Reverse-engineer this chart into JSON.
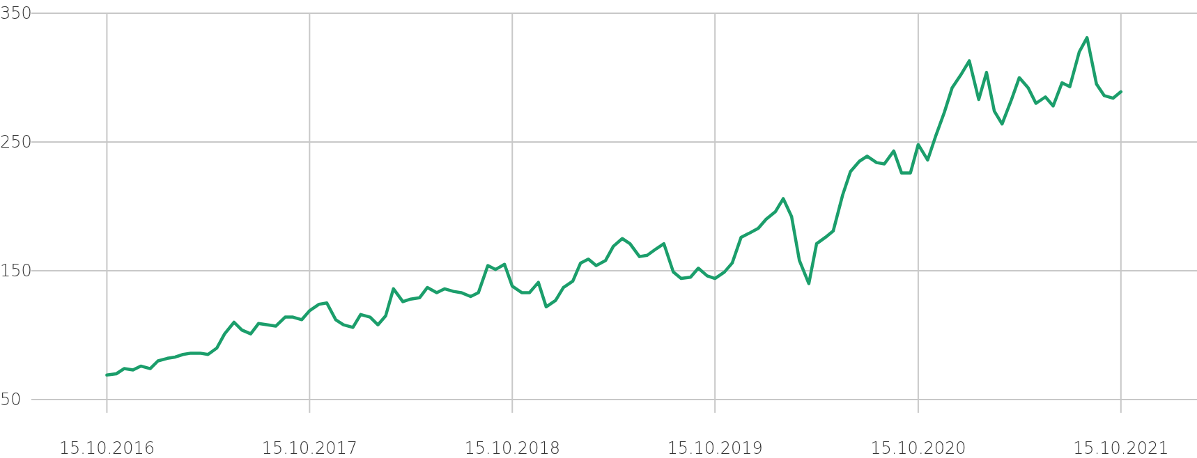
{
  "chart_data": {
    "type": "line",
    "xlim": [
      "2016-06-06",
      "2022-03-01"
    ],
    "ylim": [
      50,
      350
    ],
    "xticks": [
      {
        "value": "2016-10-15",
        "label": "15.10.2016"
      },
      {
        "value": "2017-10-15",
        "label": "15.10.2017"
      },
      {
        "value": "2018-10-15",
        "label": "15.10.2018"
      },
      {
        "value": "2019-10-15",
        "label": "15.10.2019"
      },
      {
        "value": "2020-10-15",
        "label": "15.10.2020"
      },
      {
        "value": "2021-10-15",
        "label": "15.10.2021"
      }
    ],
    "yticks": [
      50,
      150,
      250,
      350
    ],
    "grid": true,
    "marker": "none",
    "line_style": "solid",
    "x": [
      "2016-10-15",
      "2016-11-01",
      "2016-11-15",
      "2016-12-01",
      "2016-12-15",
      "2017-01-01",
      "2017-01-15",
      "2017-02-01",
      "2017-02-15",
      "2017-03-01",
      "2017-03-15",
      "2017-04-01",
      "2017-04-15",
      "2017-05-01",
      "2017-05-15",
      "2017-06-01",
      "2017-06-15",
      "2017-07-01",
      "2017-07-15",
      "2017-08-01",
      "2017-08-15",
      "2017-09-01",
      "2017-09-15",
      "2017-10-01",
      "2017-10-15",
      "2017-11-01",
      "2017-11-15",
      "2017-12-01",
      "2017-12-15",
      "2018-01-01",
      "2018-01-15",
      "2018-02-01",
      "2018-02-15",
      "2018-03-01",
      "2018-03-15",
      "2018-04-01",
      "2018-04-15",
      "2018-05-01",
      "2018-05-15",
      "2018-06-01",
      "2018-06-15",
      "2018-07-01",
      "2018-07-15",
      "2018-08-01",
      "2018-08-15",
      "2018-09-01",
      "2018-09-15",
      "2018-10-01",
      "2018-10-15",
      "2018-11-01",
      "2018-11-15",
      "2018-12-01",
      "2018-12-15",
      "2019-01-01",
      "2019-01-15",
      "2019-02-01",
      "2019-02-15",
      "2019-03-01",
      "2019-03-15",
      "2019-04-01",
      "2019-04-15",
      "2019-05-01",
      "2019-05-15",
      "2019-06-01",
      "2019-06-15",
      "2019-07-01",
      "2019-07-15",
      "2019-08-01",
      "2019-08-15",
      "2019-09-01",
      "2019-09-15",
      "2019-10-01",
      "2019-10-15",
      "2019-11-01",
      "2019-11-15",
      "2019-12-01",
      "2019-12-15",
      "2020-01-01",
      "2020-01-15",
      "2020-02-01",
      "2020-02-15",
      "2020-03-01",
      "2020-03-15",
      "2020-04-01",
      "2020-04-15",
      "2020-05-01",
      "2020-05-15",
      "2020-06-01",
      "2020-06-15",
      "2020-07-01",
      "2020-07-15",
      "2020-08-01",
      "2020-08-15",
      "2020-09-01",
      "2020-09-15",
      "2020-10-01",
      "2020-10-15",
      "2020-11-01",
      "2020-11-15",
      "2020-12-01",
      "2020-12-15",
      "2021-01-01",
      "2021-01-15",
      "2021-02-01",
      "2021-02-15",
      "2021-03-01",
      "2021-03-15",
      "2021-04-01",
      "2021-04-15",
      "2021-05-01",
      "2021-05-15",
      "2021-06-01",
      "2021-06-15",
      "2021-07-01",
      "2021-07-15",
      "2021-08-01",
      "2021-08-15",
      "2021-09-01",
      "2021-09-15",
      "2021-10-01",
      "2021-10-15"
    ],
    "series": [
      {
        "color": "#1b9e6b",
        "values": [
          69,
          70,
          74,
          73,
          76,
          74,
          80,
          82,
          83,
          85,
          86,
          86,
          85,
          90,
          101,
          110,
          104,
          101,
          109,
          108,
          107,
          114,
          114,
          112,
          119,
          124,
          125,
          112,
          108,
          106,
          116,
          114,
          108,
          115,
          136,
          126,
          128,
          129,
          137,
          133,
          136,
          134,
          133,
          130,
          133,
          154,
          151,
          155,
          138,
          133,
          133,
          141,
          122,
          127,
          137,
          142,
          156,
          159,
          154,
          158,
          169,
          175,
          171,
          161,
          162,
          167,
          171,
          149,
          144,
          145,
          152,
          146,
          144,
          149,
          156,
          176,
          179,
          183,
          190,
          196,
          206,
          192,
          158,
          140,
          171,
          176,
          181,
          209,
          227,
          235,
          239,
          234,
          233,
          243,
          226,
          226,
          248,
          236,
          254,
          273,
          292,
          303,
          313,
          283,
          304,
          274,
          264,
          283,
          300,
          292,
          280,
          285,
          278,
          296,
          293,
          320,
          331,
          295,
          286,
          284,
          289
        ]
      }
    ]
  }
}
